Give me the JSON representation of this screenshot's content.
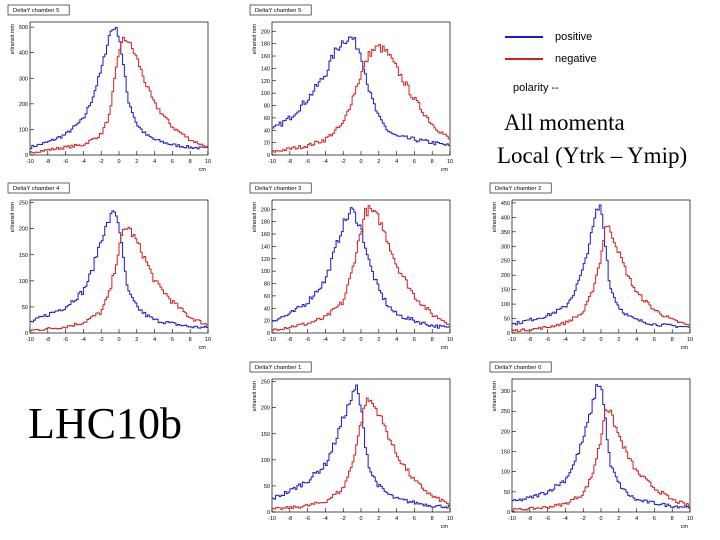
{
  "legend": {
    "positive_label": "positive",
    "negative_label": "negative",
    "polarity_label": "polarity --",
    "positive_color": "#1a1acc",
    "negative_color": "#d42020"
  },
  "caption": {
    "line1": "All momenta",
    "line2": "Local (Ytrk – Ymip)"
  },
  "run_label": "LHC10b",
  "chart_data": [
    {
      "type": "line",
      "title": "DeltaY chamber 5",
      "xlabel": "cm",
      "ylabel": "e/transit mm",
      "xlim": [
        -10,
        10
      ],
      "xticks": [
        -10,
        -8,
        -6,
        -4,
        -2,
        0,
        2,
        4,
        6,
        8,
        10
      ],
      "ylim": [
        0,
        520
      ],
      "yticks": [
        0,
        100,
        200,
        300,
        400,
        500
      ],
      "series": [
        {
          "name": "positive",
          "x": [
            -10,
            -8,
            -6,
            -4,
            -3,
            -2,
            -1,
            -0.5,
            0,
            0.5,
            1,
            2,
            3,
            4,
            6,
            8,
            10
          ],
          "y": [
            30,
            50,
            80,
            140,
            220,
            330,
            480,
            500,
            470,
            350,
            220,
            120,
            80,
            60,
            40,
            30,
            25
          ]
        },
        {
          "name": "negative",
          "x": [
            -10,
            -8,
            -6,
            -4,
            -2,
            -1,
            -0.5,
            0,
            0.5,
            1,
            2,
            3,
            4,
            6,
            8,
            10
          ],
          "y": [
            10,
            20,
            30,
            40,
            80,
            160,
            290,
            410,
            450,
            450,
            380,
            280,
            200,
            110,
            60,
            30
          ]
        }
      ]
    },
    {
      "type": "line",
      "title": "DeltaY chamber 5",
      "xlabel": "cm",
      "ylabel": "e/transit mm",
      "xlim": [
        -10,
        10
      ],
      "xticks": [
        -10,
        -8,
        -6,
        -4,
        -2,
        0,
        2,
        4,
        6,
        8,
        10
      ],
      "ylim": [
        0,
        215
      ],
      "yticks": [
        0,
        20,
        40,
        60,
        80,
        100,
        120,
        140,
        160,
        180,
        200
      ],
      "series": [
        {
          "name": "positive",
          "x": [
            -10,
            -8,
            -6,
            -4,
            -3,
            -2,
            -1,
            0,
            1,
            2,
            3,
            4,
            6,
            8,
            10
          ],
          "y": [
            40,
            60,
            90,
            130,
            165,
            185,
            190,
            165,
            100,
            60,
            40,
            30,
            25,
            20,
            15
          ]
        },
        {
          "name": "negative",
          "x": [
            -10,
            -8,
            -6,
            -4,
            -2,
            -1,
            0,
            1,
            2,
            3,
            4,
            6,
            8,
            10
          ],
          "y": [
            5,
            10,
            15,
            25,
            50,
            90,
            130,
            165,
            175,
            165,
            140,
            90,
            50,
            25
          ]
        }
      ]
    },
    {
      "type": "line",
      "title": "DeltaY chamber 4",
      "xlabel": "cm",
      "ylabel": "e/transit mm",
      "xlim": [
        -10,
        10
      ],
      "xticks": [
        -10,
        -8,
        -6,
        -4,
        -2,
        0,
        2,
        4,
        6,
        8,
        10
      ],
      "ylim": [
        0,
        255
      ],
      "yticks": [
        0,
        50,
        100,
        150,
        200,
        250
      ],
      "series": [
        {
          "name": "positive",
          "x": [
            -10,
            -8,
            -6,
            -4,
            -3,
            -2,
            -1,
            -0.5,
            0,
            0.5,
            1,
            2,
            3,
            4,
            6,
            8,
            10
          ],
          "y": [
            20,
            35,
            50,
            80,
            120,
            180,
            220,
            235,
            210,
            140,
            80,
            50,
            35,
            25,
            18,
            12,
            10
          ]
        },
        {
          "name": "negative",
          "x": [
            -10,
            -8,
            -6,
            -4,
            -2,
            -1,
            0,
            0.5,
            1,
            2,
            3,
            4,
            6,
            8,
            10
          ],
          "y": [
            5,
            8,
            12,
            20,
            40,
            80,
            160,
            195,
            205,
            175,
            140,
            100,
            60,
            30,
            15
          ]
        }
      ]
    },
    {
      "type": "line",
      "title": "DeltaY chamber 3",
      "xlabel": "cm",
      "ylabel": "e/transit mm",
      "xlim": [
        -10,
        10
      ],
      "xticks": [
        -10,
        -8,
        -6,
        -4,
        -2,
        0,
        2,
        4,
        6,
        8,
        10
      ],
      "ylim": [
        0,
        215
      ],
      "yticks": [
        0,
        20,
        40,
        60,
        80,
        100,
        120,
        140,
        160,
        180,
        200
      ],
      "series": [
        {
          "name": "positive",
          "x": [
            -10,
            -8,
            -6,
            -4,
            -3,
            -2,
            -1,
            0,
            1,
            2,
            3,
            4,
            6,
            8,
            10
          ],
          "y": [
            20,
            30,
            50,
            85,
            130,
            175,
            200,
            170,
            110,
            70,
            45,
            30,
            20,
            12,
            8
          ]
        },
        {
          "name": "negative",
          "x": [
            -10,
            -8,
            -6,
            -4,
            -2,
            -1,
            0,
            0.5,
            1,
            2,
            3,
            4,
            6,
            8,
            10
          ],
          "y": [
            5,
            10,
            15,
            25,
            50,
            100,
            165,
            195,
            200,
            185,
            150,
            110,
            60,
            30,
            15
          ]
        }
      ]
    },
    {
      "type": "line",
      "title": "DeltaY chamber 2",
      "xlabel": "cm",
      "ylabel": "e/transit mm",
      "xlim": [
        -10,
        10
      ],
      "xticks": [
        -10,
        -8,
        -6,
        -4,
        -2,
        0,
        2,
        4,
        6,
        8,
        10
      ],
      "ylim": [
        0,
        460
      ],
      "yticks": [
        0,
        50,
        100,
        150,
        200,
        250,
        300,
        350,
        400,
        450
      ],
      "series": [
        {
          "name": "positive",
          "x": [
            -10,
            -8,
            -6,
            -4,
            -3,
            -2,
            -1,
            -0.5,
            0,
            0.5,
            1,
            2,
            3,
            4,
            6,
            8,
            10
          ],
          "y": [
            30,
            45,
            60,
            90,
            140,
            220,
            350,
            420,
            440,
            310,
            160,
            90,
            60,
            45,
            30,
            25,
            20
          ]
        },
        {
          "name": "negative",
          "x": [
            -10,
            -8,
            -6,
            -4,
            -2,
            -1,
            0,
            0.5,
            1,
            2,
            3,
            4,
            6,
            8,
            10
          ],
          "y": [
            8,
            12,
            20,
            35,
            70,
            140,
            260,
            370,
            360,
            280,
            200,
            140,
            80,
            45,
            25
          ]
        }
      ]
    },
    {
      "type": "line",
      "title": "DeltaY chamber 1",
      "xlabel": "cm",
      "ylabel": "e/transit mm",
      "xlim": [
        -10,
        10
      ],
      "xticks": [
        -10,
        -8,
        -6,
        -4,
        -2,
        0,
        2,
        4,
        6,
        8,
        10
      ],
      "ylim": [
        0,
        255
      ],
      "yticks": [
        0,
        50,
        100,
        150,
        200,
        250
      ],
      "series": [
        {
          "name": "positive",
          "x": [
            -10,
            -8,
            -6,
            -4,
            -3,
            -2,
            -1,
            -0.5,
            0,
            0.5,
            1,
            2,
            3,
            4,
            6,
            8,
            10
          ],
          "y": [
            25,
            40,
            60,
            90,
            130,
            180,
            220,
            240,
            200,
            130,
            80,
            50,
            35,
            25,
            18,
            12,
            10
          ]
        },
        {
          "name": "negative",
          "x": [
            -10,
            -8,
            -6,
            -4,
            -2,
            -1,
            0,
            0.5,
            1,
            2,
            3,
            4,
            6,
            8,
            10
          ],
          "y": [
            5,
            8,
            12,
            20,
            45,
            90,
            170,
            210,
            215,
            190,
            150,
            110,
            60,
            30,
            15
          ]
        }
      ]
    },
    {
      "type": "line",
      "title": "DeltaY chamber 0",
      "xlabel": "cm",
      "ylabel": "e/transit mm",
      "xlim": [
        -10,
        10
      ],
      "xticks": [
        -10,
        -8,
        -6,
        -4,
        -2,
        0,
        2,
        4,
        6,
        8,
        10
      ],
      "ylim": [
        0,
        330
      ],
      "yticks": [
        0,
        50,
        100,
        150,
        200,
        250,
        300
      ],
      "series": [
        {
          "name": "positive",
          "x": [
            -10,
            -8,
            -6,
            -4,
            -3,
            -2,
            -1,
            -0.5,
            0,
            0.5,
            1,
            2,
            3,
            4,
            6,
            8,
            10
          ],
          "y": [
            25,
            35,
            50,
            80,
            120,
            180,
            260,
            310,
            320,
            230,
            120,
            70,
            45,
            30,
            22,
            15,
            12
          ]
        },
        {
          "name": "negative",
          "x": [
            -10,
            -8,
            -6,
            -4,
            -2,
            -1,
            0,
            0.5,
            1,
            2,
            3,
            4,
            6,
            8,
            10
          ],
          "y": [
            5,
            8,
            12,
            20,
            45,
            90,
            180,
            260,
            250,
            190,
            140,
            100,
            60,
            30,
            15
          ]
        }
      ]
    }
  ]
}
